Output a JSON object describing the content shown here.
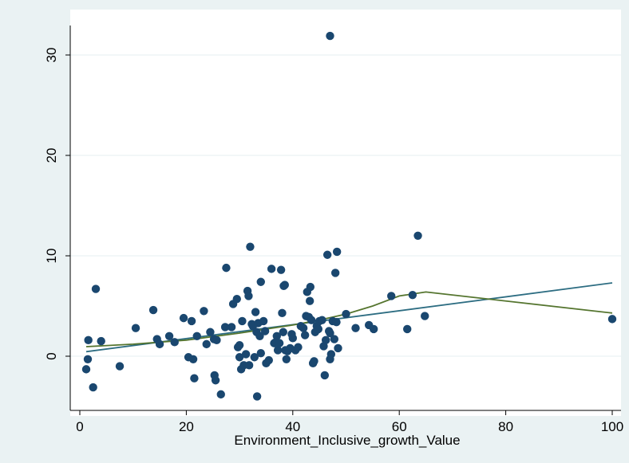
{
  "chart_data": {
    "type": "scatter",
    "title": "",
    "xlabel": "Environment_Inclusive_growth_Value",
    "ylabel": "",
    "xlim": [
      0,
      100
    ],
    "ylim": [
      -5,
      33
    ],
    "x_ticks": [
      0,
      20,
      40,
      60,
      80,
      100
    ],
    "y_ticks": [
      0,
      10,
      20,
      30
    ],
    "x_tick_labels": [
      "0",
      "20",
      "40",
      "60",
      "80",
      "100"
    ],
    "y_tick_labels": [
      "0",
      "10",
      "20",
      "30"
    ],
    "grid": "horizontal",
    "legend": "none",
    "colors": {
      "background": "#eaf2f3",
      "plot_area": "#ffffff",
      "points": "#1a476f",
      "fit_line": "#2d6d82",
      "smooth_line": "#55752f",
      "grid": "#eaf2f3"
    },
    "series": [
      {
        "kind": "scatter",
        "points": [
          [
            1.2,
            -1.3
          ],
          [
            1.5,
            -0.3
          ],
          [
            1.6,
            1.6
          ],
          [
            2.5,
            -3.1
          ],
          [
            3.0,
            6.7
          ],
          [
            4.0,
            1.5
          ],
          [
            7.5,
            -1.0
          ],
          [
            10.5,
            2.8
          ],
          [
            13.8,
            4.6
          ],
          [
            14.5,
            1.7
          ],
          [
            15.0,
            1.2
          ],
          [
            16.8,
            2.0
          ],
          [
            17.8,
            1.4
          ],
          [
            19.5,
            3.8
          ],
          [
            20.4,
            -0.1
          ],
          [
            21.0,
            3.5
          ],
          [
            21.3,
            -0.3
          ],
          [
            21.5,
            -2.2
          ],
          [
            22.0,
            2.0
          ],
          [
            23.3,
            4.5
          ],
          [
            23.8,
            1.2
          ],
          [
            24.5,
            2.4
          ],
          [
            25.2,
            1.7
          ],
          [
            25.3,
            -1.9
          ],
          [
            25.5,
            -2.4
          ],
          [
            25.7,
            1.6
          ],
          [
            26.5,
            -3.8
          ],
          [
            27.3,
            2.9
          ],
          [
            27.5,
            8.8
          ],
          [
            28.5,
            2.9
          ],
          [
            28.8,
            5.2
          ],
          [
            29.5,
            5.7
          ],
          [
            29.7,
            0.9
          ],
          [
            30.0,
            1.1
          ],
          [
            30.0,
            -0.1
          ],
          [
            30.3,
            -1.3
          ],
          [
            30.5,
            3.5
          ],
          [
            30.8,
            -0.9
          ],
          [
            31.2,
            0.2
          ],
          [
            31.5,
            6.5
          ],
          [
            31.7,
            6.0
          ],
          [
            31.8,
            -0.9
          ],
          [
            32.0,
            10.9
          ],
          [
            32.3,
            3.2
          ],
          [
            32.5,
            3.0
          ],
          [
            32.8,
            -0.1
          ],
          [
            33.0,
            4.4
          ],
          [
            33.2,
            2.4
          ],
          [
            33.3,
            -4.0
          ],
          [
            33.5,
            3.3
          ],
          [
            33.8,
            2.0
          ],
          [
            34.0,
            0.3
          ],
          [
            34.0,
            7.4
          ],
          [
            34.5,
            3.5
          ],
          [
            34.8,
            2.5
          ],
          [
            35.0,
            -0.7
          ],
          [
            35.5,
            -0.4
          ],
          [
            36.0,
            8.7
          ],
          [
            36.5,
            1.3
          ],
          [
            36.8,
            1.4
          ],
          [
            37.0,
            2.0
          ],
          [
            37.2,
            0.6
          ],
          [
            37.5,
            1.3
          ],
          [
            37.8,
            8.6
          ],
          [
            38.0,
            4.3
          ],
          [
            38.2,
            2.4
          ],
          [
            38.3,
            7.0
          ],
          [
            38.5,
            7.1
          ],
          [
            38.6,
            0.6
          ],
          [
            38.8,
            -0.3
          ],
          [
            39.0,
            0.5
          ],
          [
            39.5,
            0.8
          ],
          [
            39.8,
            2.2
          ],
          [
            40.0,
            1.8
          ],
          [
            40.5,
            0.6
          ],
          [
            41.0,
            0.9
          ],
          [
            41.5,
            3.0
          ],
          [
            42.0,
            2.8
          ],
          [
            42.3,
            2.1
          ],
          [
            42.5,
            4.0
          ],
          [
            42.7,
            6.4
          ],
          [
            43.0,
            3.9
          ],
          [
            43.2,
            5.5
          ],
          [
            43.3,
            6.9
          ],
          [
            43.5,
            3.6
          ],
          [
            43.8,
            -0.7
          ],
          [
            44.0,
            -0.5
          ],
          [
            44.2,
            2.4
          ],
          [
            44.5,
            3.0
          ],
          [
            44.8,
            2.7
          ],
          [
            45.0,
            3.5
          ],
          [
            45.5,
            3.6
          ],
          [
            45.8,
            1.0
          ],
          [
            46.0,
            -1.9
          ],
          [
            46.2,
            1.6
          ],
          [
            46.5,
            10.1
          ],
          [
            46.8,
            2.5
          ],
          [
            47.0,
            2.3
          ],
          [
            47.2,
            0.2
          ],
          [
            47.0,
            -0.3
          ],
          [
            47.5,
            3.5
          ],
          [
            47.8,
            1.7
          ],
          [
            48.0,
            8.3
          ],
          [
            48.2,
            3.4
          ],
          [
            48.3,
            10.4
          ],
          [
            48.5,
            0.8
          ],
          [
            50.0,
            4.2
          ],
          [
            51.8,
            2.8
          ],
          [
            54.3,
            3.1
          ],
          [
            55.2,
            2.7
          ],
          [
            58.5,
            6.0
          ],
          [
            61.5,
            2.7
          ],
          [
            62.5,
            6.1
          ],
          [
            63.5,
            12.0
          ],
          [
            64.8,
            4.0
          ],
          [
            47.0,
            31.9
          ],
          [
            100.0,
            3.7
          ]
        ]
      },
      {
        "kind": "line",
        "role": "linear-fit",
        "points": [
          [
            1.2,
            0.45
          ],
          [
            100.0,
            7.3
          ]
        ]
      },
      {
        "kind": "line",
        "role": "lowess-smooth",
        "points": [
          [
            1.2,
            0.95
          ],
          [
            10,
            1.2
          ],
          [
            20,
            1.6
          ],
          [
            30,
            2.3
          ],
          [
            40,
            3.1
          ],
          [
            45,
            3.6
          ],
          [
            50,
            4.2
          ],
          [
            55,
            5.0
          ],
          [
            60,
            6.0
          ],
          [
            65,
            6.4
          ],
          [
            100,
            4.3
          ]
        ]
      }
    ]
  }
}
